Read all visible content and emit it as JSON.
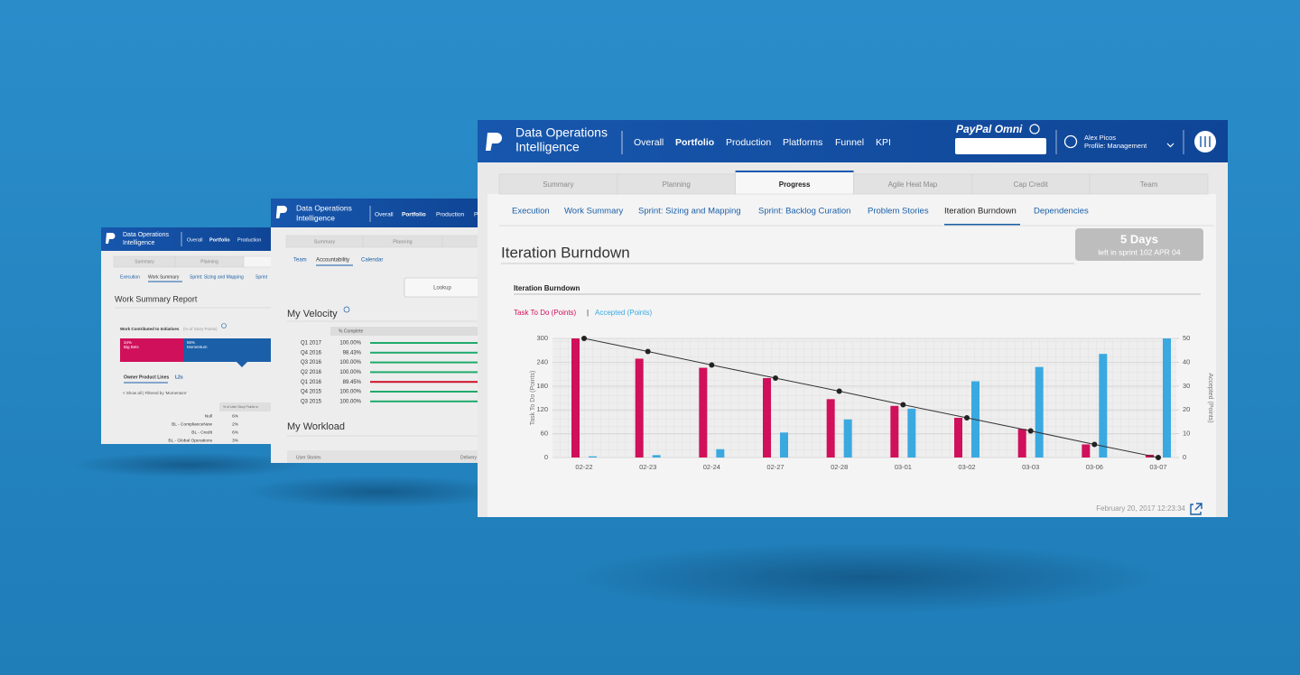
{
  "back_left": {
    "app_title": [
      "Data Operations",
      "Intelligence"
    ],
    "nav": [
      "Overall",
      "Portfolio",
      "Production"
    ],
    "tabs": [
      "Summary",
      "Planning"
    ],
    "subtabs": [
      "Execution",
      "Work Summary",
      "Sprint: Sizing and Mapping",
      "Sprint"
    ],
    "report_title": "Work Summary Report",
    "initiatives_label": "Work Contributed to Initiatives",
    "initiatives_note": "(% of Story Points)",
    "segments": [
      {
        "pct": "34%",
        "label": "Big Bets",
        "color": "#d0105a"
      },
      {
        "pct": "56%",
        "label": "Momentum",
        "color": "#1a5fa8"
      }
    ],
    "line_tabs": [
      "Owner Product Lines",
      "L2s"
    ],
    "filter": "< Show all | Filtered by 'Momentum'",
    "column_header": "% of User Story Points in",
    "rows": [
      [
        "Null",
        "6%"
      ],
      [
        "BL - ComplianceNew",
        "2%"
      ],
      [
        "BL - Credit",
        "6%"
      ],
      [
        "BL - Global Operations",
        "3%"
      ]
    ]
  },
  "back_middle": {
    "app_title": [
      "Data Operations",
      "Intelligence"
    ],
    "nav": [
      "Overall",
      "Portfolio",
      "Production",
      "Platforms"
    ],
    "tabs": [
      "Summary",
      "Planning"
    ],
    "subtabs": [
      "Team",
      "Accountability",
      "Calendar"
    ],
    "lookup": "Lookup",
    "velocity_title": "My Velocity",
    "velocity_header": "% Complete",
    "velocity_rows": [
      [
        "Q1 2017",
        "100.00%"
      ],
      [
        "Q4 2016",
        "98.43%"
      ],
      [
        "Q3 2016",
        "100.00%"
      ],
      [
        "Q2 2016",
        "100.00%"
      ],
      [
        "Q1 2016",
        "89.45%"
      ],
      [
        "Q4 2015",
        "100.00%"
      ],
      [
        "Q3 2015",
        "100.00%"
      ]
    ],
    "velocity_colors": [
      "#1faa6b",
      "#1faa6b",
      "#1faa6b",
      "#1faa6b",
      "#d0102a",
      "#1faa6b",
      "#1faa6b"
    ],
    "workload_title": "My Workload",
    "workload_header": [
      "User Stories",
      "Delivery"
    ]
  },
  "main": {
    "app_title": [
      "Data Operations",
      "Intelligence"
    ],
    "nav": [
      "Overall",
      "Portfolio",
      "Production",
      "Platforms",
      "Funnel",
      "KPI"
    ],
    "brand": "PayPal Omni",
    "user_name": "Alex Picos",
    "user_profile": "Profile: Management",
    "tabs": [
      "Summary",
      "Planning",
      "Progress",
      "Agile Heat Map",
      "Cap Credit",
      "Team"
    ],
    "subtabs": [
      "Execution",
      "Work Summary",
      "Sprint: Sizing and Mapping",
      "Sprint: Backlog Curation",
      "Problem Stories",
      "Iteration Burndown",
      "Dependencies"
    ],
    "page_title": "Iteration Burndown",
    "badge_value": "5 Days",
    "badge_caption": "left in sprint 102 APR 04",
    "panel_title": "Iteration Burndown",
    "legend_separator": "|",
    "timestamp": "February 20, 2017 12:23:34"
  },
  "chart_data": {
    "type": "bar",
    "categories": [
      "02-22",
      "02-23",
      "02-24",
      "02-27",
      "02-28",
      "03-01",
      "03-02",
      "03-03",
      "03-06",
      "03-07"
    ],
    "series": [
      {
        "name": "Task To Do (Points)",
        "color": "#d0105a",
        "values": [
          300,
          249,
          226,
          200,
          147,
          130,
          100,
          72,
          33,
          7
        ]
      },
      {
        "name": "Accepted (Points)",
        "color": "#3aa9e0",
        "axis": "y2",
        "values": [
          0.5,
          1,
          3.5,
          10.5,
          16,
          20.5,
          32,
          38,
          43.5,
          50
        ]
      },
      {
        "type": "line",
        "color": "#333333",
        "values": [
          300,
          267,
          233,
          200,
          167,
          133,
          100,
          67,
          33,
          0
        ]
      }
    ],
    "ylabel": "Task To Do (Points)",
    "y2label": "Accepted (Points)",
    "ylim": [
      0,
      300
    ],
    "yticks": [
      0,
      60,
      120,
      180,
      240,
      300
    ],
    "y2lim": [
      0,
      50
    ],
    "y2ticks": [
      0,
      10,
      20,
      30,
      40,
      50
    ],
    "grid": true
  }
}
